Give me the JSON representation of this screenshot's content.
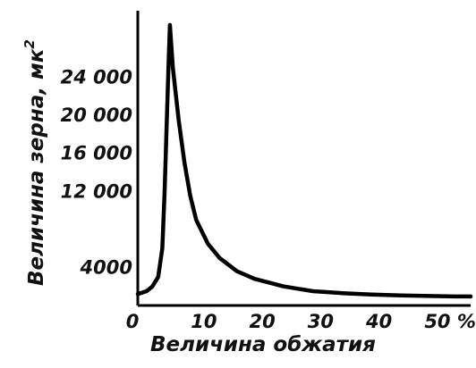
{
  "chart_data": {
    "type": "line",
    "xlabel": "Величина обжатия",
    "ylabel": "Величина зерна, мк",
    "ylabel_sup": "2",
    "x_ticks": [
      {
        "value": 0,
        "label": "0"
      },
      {
        "value": 10,
        "label": "10"
      },
      {
        "value": 20,
        "label": "20"
      },
      {
        "value": 30,
        "label": "30"
      },
      {
        "value": 40,
        "label": "40"
      },
      {
        "value": 50,
        "label": "50 %"
      }
    ],
    "y_ticks": [
      {
        "value": 4000,
        "label": "4000"
      },
      {
        "value": 12000,
        "label": "12 000"
      },
      {
        "value": 16000,
        "label": "16 000"
      },
      {
        "value": 20000,
        "label": "20 000"
      },
      {
        "value": 24000,
        "label": "24 000"
      }
    ],
    "xlim": [
      0,
      57
    ],
    "ylim": [
      0,
      31000
    ],
    "grid": false,
    "series": [
      {
        "color": "#000000",
        "x": [
          0,
          1.5,
          2.5,
          3.5,
          4.2,
          4.6,
          5.0,
          5.3,
          5.5,
          6,
          7,
          8,
          9,
          10,
          12,
          14,
          17,
          20,
          25,
          30,
          35,
          40,
          45,
          50,
          55,
          57
        ],
        "y": [
          1200,
          1500,
          2000,
          3000,
          6000,
          12000,
          20000,
          26000,
          29500,
          25000,
          19500,
          15000,
          11500,
          9000,
          6500,
          5000,
          3600,
          2800,
          2000,
          1500,
          1300,
          1150,
          1050,
          1000,
          950,
          950
        ]
      }
    ]
  }
}
